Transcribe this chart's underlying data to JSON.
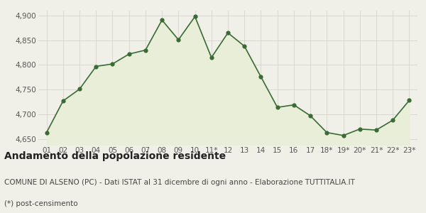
{
  "x_labels": [
    "01",
    "02",
    "03",
    "04",
    "05",
    "06",
    "07",
    "08",
    "09",
    "10",
    "11*",
    "12",
    "13",
    "14",
    "15",
    "16",
    "17",
    "18*",
    "19*",
    "20*",
    "21*",
    "22*",
    "23*"
  ],
  "y_values": [
    4663,
    4727,
    4751,
    4797,
    4802,
    4822,
    4830,
    4891,
    4851,
    4898,
    4815,
    4865,
    4838,
    4776,
    4714,
    4719,
    4697,
    4663,
    4657,
    4670,
    4668,
    4688,
    4728
  ],
  "ylim": [
    4638,
    4910
  ],
  "yticks": [
    4650,
    4700,
    4750,
    4800,
    4850,
    4900
  ],
  "line_color": "#3a6b35",
  "fill_color": "#e8eed8",
  "marker_color": "#3a6b35",
  "bg_color": "#f0f0e8",
  "plot_bg_color": "#f0f0e8",
  "grid_color": "#d0d0c8",
  "title": "Andamento della popolazione residente",
  "subtitle": "COMUNE DI ALSENO (PC) - Dati ISTAT al 31 dicembre di ogni anno - Elaborazione TUTTITALIA.IT",
  "footnote": "(*) post-censimento",
  "title_fontsize": 10,
  "subtitle_fontsize": 7.5,
  "footnote_fontsize": 7.5,
  "tick_fontsize": 7.5,
  "fill_baseline": 4638
}
